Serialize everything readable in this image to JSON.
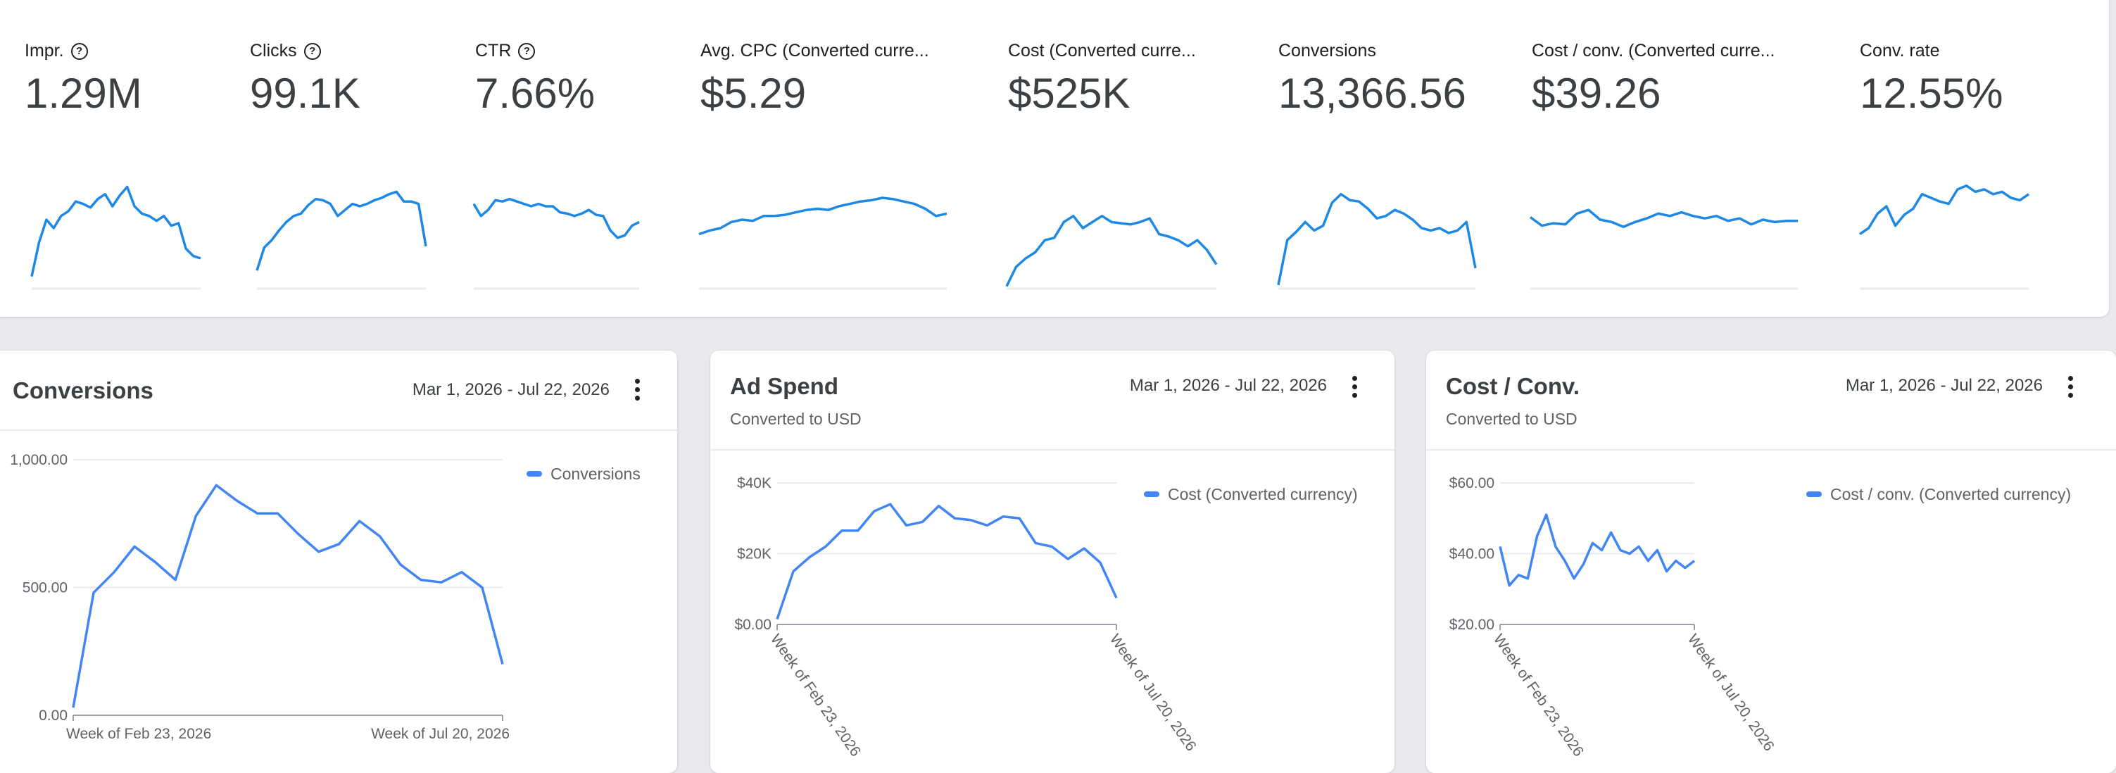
{
  "colors": {
    "accent": "#1e88e5",
    "series": "#4285f4"
  },
  "scorecards": [
    {
      "label": "Impr.",
      "help": true,
      "value": "1.29M",
      "trend": [
        10,
        38,
        57,
        50,
        60,
        64,
        72,
        70,
        67,
        74,
        78,
        68,
        77,
        84,
        68,
        62,
        60,
        56,
        60,
        52,
        54,
        33,
        27,
        25
      ]
    },
    {
      "label": "Clicks",
      "help": true,
      "value": "99.1K",
      "trend": [
        15,
        34,
        40,
        48,
        55,
        60,
        62,
        69,
        74,
        73,
        70,
        60,
        65,
        70,
        68,
        70,
        73,
        75,
        78,
        80,
        72,
        72,
        70,
        35
      ]
    },
    {
      "label": "CTR",
      "help": true,
      "value": "7.66%",
      "trend": [
        70,
        60,
        65,
        73,
        72,
        74,
        72,
        70,
        68,
        70,
        68,
        68,
        63,
        62,
        60,
        62,
        65,
        61,
        60,
        48,
        42,
        44,
        52,
        55
      ]
    },
    {
      "label": "Avg. CPC (Converted curre...",
      "help": false,
      "value": "$5.29",
      "trend": [
        45,
        48,
        50,
        55,
        57,
        56,
        60,
        60,
        61,
        63,
        65,
        66,
        65,
        68,
        70,
        72,
        73,
        75,
        74,
        72,
        70,
        66,
        60,
        62
      ]
    },
    {
      "label": "Cost (Converted curre...",
      "help": false,
      "value": "$525K",
      "trend": [
        2,
        18,
        25,
        30,
        40,
        42,
        55,
        60,
        50,
        55,
        60,
        55,
        54,
        53,
        55,
        58,
        45,
        43,
        40,
        35,
        40,
        32,
        20
      ]
    },
    {
      "label": "Conversions",
      "help": false,
      "value": "13,366.56",
      "trend": [
        3,
        40,
        47,
        55,
        48,
        52,
        71,
        78,
        73,
        72,
        66,
        58,
        60,
        65,
        62,
        57,
        50,
        48,
        50,
        46,
        48,
        55,
        17
      ]
    },
    {
      "label": "Cost / conv. (Converted curre...",
      "help": false,
      "value": "$39.26",
      "trend": [
        59,
        52,
        54,
        53,
        62,
        65,
        57,
        55,
        51,
        55,
        58,
        62,
        60,
        63,
        60,
        58,
        60,
        56,
        58,
        53,
        57,
        55,
        56,
        56
      ]
    },
    {
      "label": "Conv. rate",
      "help": false,
      "value": "12.55%",
      "trend": [
        45,
        50,
        62,
        68,
        52,
        61,
        66,
        78,
        75,
        72,
        70,
        82,
        85,
        80,
        82,
        78,
        80,
        75,
        73,
        78
      ]
    }
  ],
  "panels": [
    {
      "title": "Conversions",
      "subtitle": "",
      "date_range": "Mar 1, 2026 - Jul 22, 2026",
      "chart_data": {
        "type": "line",
        "x_labels": [
          "Week of Feb 23, 2026",
          "Week of Jul 20, 2026"
        ],
        "y_ticks": [
          "1,000.00",
          "500.00",
          "0.00"
        ],
        "ylim": [
          0,
          1000
        ],
        "series": [
          {
            "name": "Conversions",
            "values": [
              30,
              480,
              560,
              660,
              600,
              530,
              780,
              900,
              840,
              790,
              790,
              710,
              640,
              670,
              760,
              700,
              590,
              530,
              520,
              560,
              500,
              200
            ]
          }
        ]
      }
    },
    {
      "title": "Ad Spend",
      "subtitle": "Converted to USD",
      "date_range": "Mar 1, 2026 - Jul 22, 2026",
      "chart_data": {
        "type": "line",
        "x_labels": [
          "Week of Feb 23, 2026",
          "Week of Jul 20, 2026"
        ],
        "y_ticks": [
          "$40K",
          "$20K",
          "$0.00"
        ],
        "ylim": [
          0,
          40000
        ],
        "series": [
          {
            "name": "Cost (Converted currency)",
            "values": [
              1500,
              15000,
              19000,
              22000,
              26500,
              26500,
              32000,
              34000,
              28000,
              29000,
              33500,
              30000,
              29500,
              28000,
              30500,
              30000,
              23000,
              22000,
              18500,
              21500,
              17500,
              7500
            ]
          }
        ]
      }
    },
    {
      "title": "Cost / Conv.",
      "subtitle": "Converted to USD",
      "date_range": "Mar 1, 2026 - Jul 22, 2026",
      "chart_data": {
        "type": "line",
        "x_labels": [
          "Week of Feb 23, 2026",
          "Week of Jul 20, 2026"
        ],
        "y_ticks": [
          "$60.00",
          "$40.00",
          "$20.00"
        ],
        "ylim": [
          20,
          60
        ],
        "series": [
          {
            "name": "Cost / conv. (Converted currency)",
            "values": [
              42,
              31,
              34,
              33,
              45,
              51,
              42,
              38,
              33,
              37,
              43,
              41,
              46,
              41,
              40,
              42,
              38,
              41,
              35,
              38,
              36,
              38
            ]
          }
        ]
      }
    }
  ]
}
